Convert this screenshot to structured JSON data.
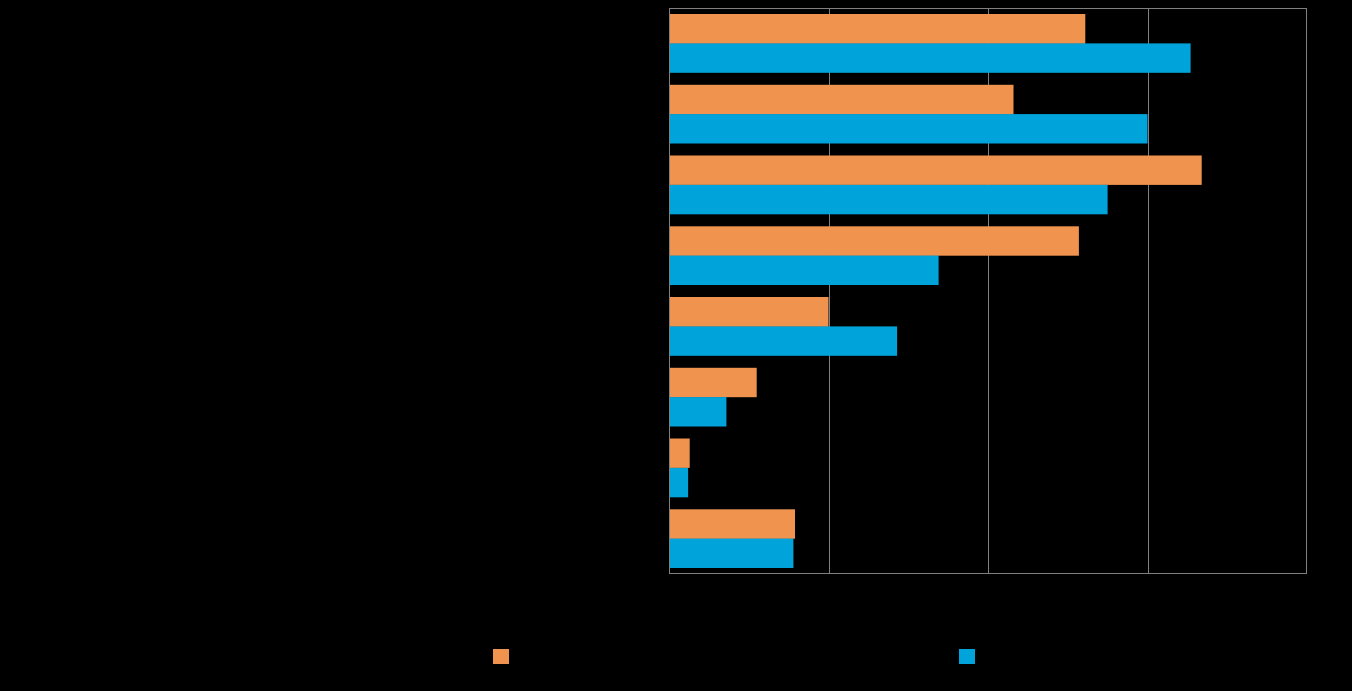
{
  "chart_data": {
    "type": "bar",
    "orientation": "horizontal",
    "categories": [
      "",
      "",
      "",
      "",
      "",
      "",
      "",
      ""
    ],
    "series": [
      {
        "color": "#F0934F",
        "values": [
          26.1,
          21.6,
          33.4,
          25.7,
          10.0,
          5.5,
          1.3,
          7.9
        ]
      },
      {
        "color": "#00A4DB",
        "values": [
          32.7,
          30.0,
          27.5,
          16.9,
          14.3,
          3.6,
          1.2,
          7.8
        ]
      }
    ],
    "xlim": [
      0,
      40
    ],
    "x_gridlines": [
      10,
      20,
      30
    ],
    "grid": true,
    "legend": "bottom-center",
    "background": "#000000",
    "gridline_color": "#808080"
  }
}
